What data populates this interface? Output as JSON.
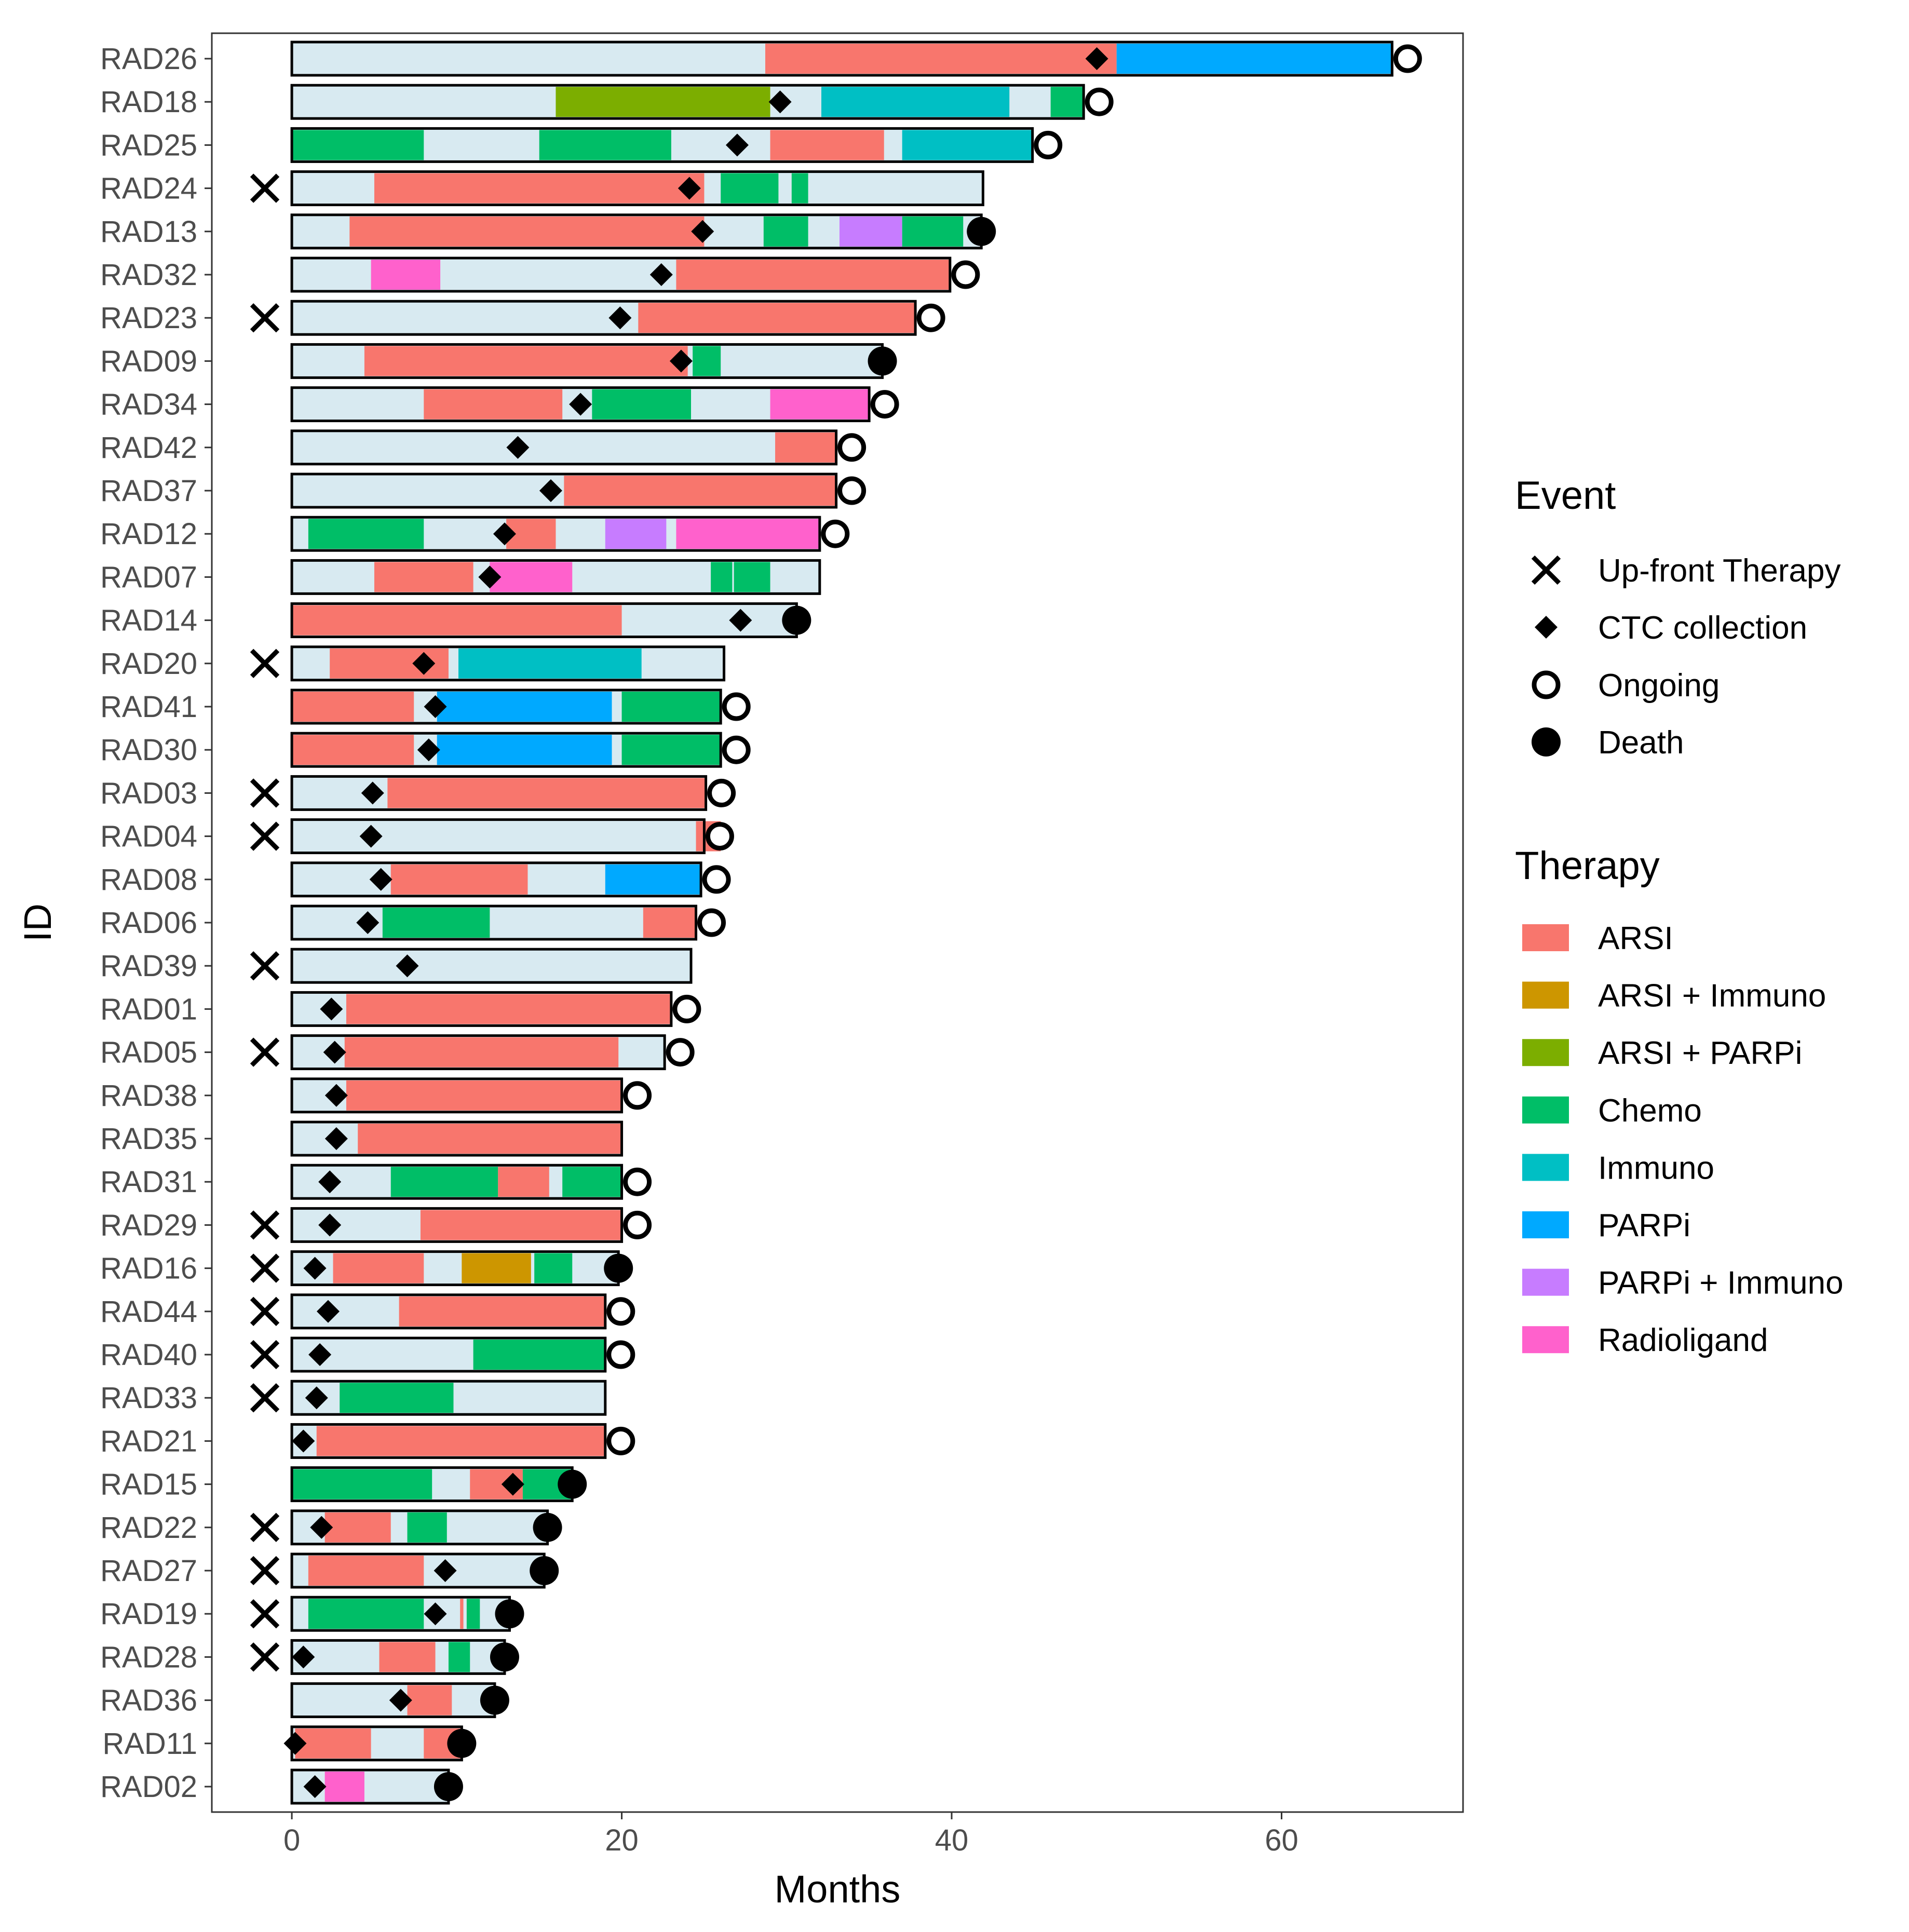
{
  "chart_data": {
    "type": "swimmer",
    "xlabel": "Months",
    "ylabel": "ID",
    "xlim": [
      -4.85,
      71
    ],
    "xticks": [
      0,
      20,
      40,
      60
    ],
    "grid": false,
    "legend_placement": "right",
    "legend": {
      "event_title": "Event",
      "events": [
        {
          "key": "upfront",
          "label": "Up-front Therapy"
        },
        {
          "key": "ctc",
          "label": "CTC collection"
        },
        {
          "key": "ongoing",
          "label": "Ongoing"
        },
        {
          "key": "death",
          "label": "Death"
        }
      ],
      "therapy_title": "Therapy",
      "therapies": [
        {
          "key": "ARSI",
          "label": "ARSI"
        },
        {
          "key": "ARSI_Immuno",
          "label": "ARSI + Immuno"
        },
        {
          "key": "ARSI_PARPi",
          "label": "ARSI + PARPi"
        },
        {
          "key": "Chemo",
          "label": "Chemo"
        },
        {
          "key": "Immuno",
          "label": "Immuno"
        },
        {
          "key": "PARPi",
          "label": "PARPi"
        },
        {
          "key": "PARPi_Immuno",
          "label": "PARPi + Immuno"
        },
        {
          "key": "Radioligand",
          "label": "Radioligand"
        }
      ]
    },
    "colors": {
      "background_bar": "#d8eaf1",
      "ARSI": "#f8766d",
      "ARSI_Immuno": "#cd9600",
      "ARSI_PARPi": "#7cae00",
      "Chemo": "#00be67",
      "Immuno": "#00bfc4",
      "PARPi": "#00a9ff",
      "PARPi_Immuno": "#c77cff",
      "Radioligand": "#ff61cc"
    },
    "patients": [
      {
        "id": "RAD26",
        "end": 66.7,
        "upfront": false,
        "ctc": 48.8,
        "status": "ongoing",
        "segments": [
          [
            "ARSI",
            28.7,
            50
          ],
          [
            "PARPi",
            50,
            66.7
          ]
        ]
      },
      {
        "id": "RAD18",
        "end": 48,
        "upfront": false,
        "ctc": 29.6,
        "status": "ongoing",
        "segments": [
          [
            "ARSI_PARPi",
            16,
            29
          ],
          [
            "Immuno",
            32.1,
            43.5
          ],
          [
            "Chemo",
            46,
            48
          ]
        ]
      },
      {
        "id": "RAD25",
        "end": 44.9,
        "upfront": false,
        "ctc": 27,
        "status": "ongoing",
        "segments": [
          [
            "Chemo",
            0,
            8
          ],
          [
            "Chemo",
            15,
            23
          ],
          [
            "ARSI",
            29,
            35.9
          ],
          [
            "Immuno",
            37,
            44.9
          ]
        ]
      },
      {
        "id": "RAD24",
        "end": 41.9,
        "upfront": true,
        "ctc": 24.1,
        "status": "none",
        "segments": [
          [
            "ARSI",
            5,
            25
          ],
          [
            "Chemo",
            26,
            29.5
          ],
          [
            "Chemo",
            30.3,
            31.3
          ]
        ]
      },
      {
        "id": "RAD13",
        "end": 41.8,
        "upfront": false,
        "ctc": 24.9,
        "status": "death",
        "segments": [
          [
            "ARSI",
            3.5,
            25
          ],
          [
            "Chemo",
            28.6,
            31.3
          ],
          [
            "PARPi_Immuno",
            33.2,
            37
          ],
          [
            "Chemo",
            37,
            40.7
          ]
        ]
      },
      {
        "id": "RAD32",
        "end": 39.9,
        "upfront": false,
        "ctc": 22.4,
        "status": "ongoing",
        "segments": [
          [
            "Radioligand",
            4.8,
            9
          ],
          [
            "ARSI",
            23.3,
            39.9
          ]
        ]
      },
      {
        "id": "RAD23",
        "end": 37.8,
        "upfront": true,
        "ctc": 19.9,
        "status": "ongoing",
        "segments": [
          [
            "ARSI",
            21,
            37.8
          ]
        ]
      },
      {
        "id": "RAD09",
        "end": 35.8,
        "upfront": false,
        "ctc": 23.6,
        "status": "death",
        "segments": [
          [
            "ARSI",
            4.4,
            24
          ],
          [
            "Chemo",
            24.3,
            26
          ]
        ]
      },
      {
        "id": "RAD34",
        "end": 35,
        "upfront": false,
        "ctc": 17.5,
        "status": "ongoing",
        "segments": [
          [
            "ARSI",
            8,
            16.4
          ],
          [
            "Chemo",
            18.2,
            24.2
          ],
          [
            "Radioligand",
            29,
            35
          ]
        ]
      },
      {
        "id": "RAD42",
        "end": 33,
        "upfront": false,
        "ctc": 13.7,
        "status": "ongoing",
        "segments": [
          [
            "ARSI",
            29.3,
            33
          ]
        ]
      },
      {
        "id": "RAD37",
        "end": 33,
        "upfront": false,
        "ctc": 15.7,
        "status": "ongoing",
        "segments": [
          [
            "ARSI",
            16.5,
            33
          ]
        ]
      },
      {
        "id": "RAD12",
        "end": 32,
        "upfront": false,
        "ctc": 12.9,
        "status": "ongoing",
        "segments": [
          [
            "Chemo",
            1,
            8
          ],
          [
            "ARSI",
            13,
            16
          ],
          [
            "PARPi_Immuno",
            19,
            22.7
          ],
          [
            "Radioligand",
            23.3,
            32
          ]
        ]
      },
      {
        "id": "RAD07",
        "end": 32,
        "upfront": false,
        "ctc": 12,
        "status": "none",
        "segments": [
          [
            "ARSI",
            5,
            11
          ],
          [
            "Radioligand",
            12,
            17
          ],
          [
            "Chemo",
            25.4,
            26.7
          ],
          [
            "Chemo",
            26.8,
            29
          ]
        ]
      },
      {
        "id": "RAD14",
        "end": 30.6,
        "upfront": false,
        "ctc": 27.2,
        "status": "death",
        "segments": [
          [
            "ARSI",
            0,
            20
          ]
        ]
      },
      {
        "id": "RAD20",
        "end": 26.2,
        "upfront": true,
        "ctc": 8,
        "status": "none",
        "segments": [
          [
            "ARSI",
            2.3,
            9.5
          ],
          [
            "Immuno",
            10.1,
            21.2
          ]
        ]
      },
      {
        "id": "RAD41",
        "end": 26,
        "upfront": false,
        "ctc": 8.7,
        "status": "ongoing",
        "segments": [
          [
            "ARSI",
            0,
            7.4
          ],
          [
            "PARPi",
            8.8,
            19.4
          ],
          [
            "Chemo",
            20,
            26
          ]
        ]
      },
      {
        "id": "RAD30",
        "end": 26,
        "upfront": false,
        "ctc": 8.3,
        "status": "ongoing",
        "segments": [
          [
            "ARSI",
            0,
            7.4
          ],
          [
            "PARPi",
            8.8,
            19.4
          ],
          [
            "Chemo",
            20,
            26
          ]
        ]
      },
      {
        "id": "RAD03",
        "end": 25.1,
        "upfront": true,
        "ctc": 4.9,
        "status": "ongoing",
        "segments": [
          [
            "ARSI",
            5.8,
            25.1
          ]
        ]
      },
      {
        "id": "RAD04",
        "end": 25,
        "upfront": true,
        "ctc": 4.8,
        "status": "ongoing",
        "segments": [
          [
            "ARSI",
            24.5,
            26
          ]
        ]
      },
      {
        "id": "RAD08",
        "end": 24.8,
        "upfront": false,
        "ctc": 5.4,
        "status": "ongoing",
        "segments": [
          [
            "ARSI",
            6,
            14.3
          ],
          [
            "PARPi",
            19,
            24.8
          ]
        ]
      },
      {
        "id": "RAD06",
        "end": 24.5,
        "upfront": false,
        "ctc": 4.6,
        "status": "ongoing",
        "segments": [
          [
            "Chemo",
            5.5,
            12
          ],
          [
            "ARSI",
            21.3,
            24.5
          ]
        ]
      },
      {
        "id": "RAD39",
        "end": 24.2,
        "upfront": true,
        "ctc": 7,
        "status": "none",
        "segments": []
      },
      {
        "id": "RAD01",
        "end": 23,
        "upfront": false,
        "ctc": 2.4,
        "status": "ongoing",
        "segments": [
          [
            "ARSI",
            3.3,
            23
          ]
        ]
      },
      {
        "id": "RAD05",
        "end": 22.6,
        "upfront": true,
        "ctc": 2.6,
        "status": "ongoing",
        "segments": [
          [
            "ARSI",
            3.2,
            19.8
          ]
        ]
      },
      {
        "id": "RAD38",
        "end": 20,
        "upfront": false,
        "ctc": 2.7,
        "status": "ongoing",
        "segments": [
          [
            "ARSI",
            3.3,
            20
          ]
        ]
      },
      {
        "id": "RAD35",
        "end": 20,
        "upfront": false,
        "ctc": 2.7,
        "status": "none",
        "segments": [
          [
            "ARSI",
            4,
            20
          ]
        ]
      },
      {
        "id": "RAD31",
        "end": 20,
        "upfront": false,
        "ctc": 2.3,
        "status": "ongoing",
        "segments": [
          [
            "Chemo",
            6,
            12.5
          ],
          [
            "ARSI",
            12.5,
            15.6
          ],
          [
            "Chemo",
            16.4,
            20
          ]
        ]
      },
      {
        "id": "RAD29",
        "end": 20,
        "upfront": true,
        "ctc": 2.3,
        "status": "ongoing",
        "segments": [
          [
            "ARSI",
            7.8,
            20
          ]
        ]
      },
      {
        "id": "RAD16",
        "end": 19.8,
        "upfront": true,
        "ctc": 1.4,
        "status": "death",
        "segments": [
          [
            "ARSI",
            2.5,
            8
          ],
          [
            "ARSI_Immuno",
            10.3,
            14.5
          ],
          [
            "Chemo",
            14.7,
            17
          ]
        ]
      },
      {
        "id": "RAD44",
        "end": 19,
        "upfront": true,
        "ctc": 2.2,
        "status": "ongoing",
        "segments": [
          [
            "ARSI",
            6.5,
            19
          ]
        ]
      },
      {
        "id": "RAD40",
        "end": 19,
        "upfront": true,
        "ctc": 1.7,
        "status": "ongoing",
        "segments": [
          [
            "Chemo",
            11,
            19
          ]
        ]
      },
      {
        "id": "RAD33",
        "end": 19,
        "upfront": true,
        "ctc": 1.5,
        "status": "none",
        "segments": [
          [
            "Chemo",
            2.9,
            9.8
          ]
        ]
      },
      {
        "id": "RAD21",
        "end": 19,
        "upfront": false,
        "ctc": 0.7,
        "status": "ongoing",
        "segments": [
          [
            "ARSI",
            1.5,
            19
          ]
        ]
      },
      {
        "id": "RAD15",
        "end": 17,
        "upfront": false,
        "ctc": 13.4,
        "status": "death",
        "segments": [
          [
            "Chemo",
            0,
            8.5
          ],
          [
            "ARSI",
            10.8,
            14
          ],
          [
            "Chemo",
            14,
            17
          ]
        ]
      },
      {
        "id": "RAD22",
        "end": 15.5,
        "upfront": true,
        "ctc": 1.8,
        "status": "death",
        "segments": [
          [
            "ARSI",
            2,
            6
          ],
          [
            "Chemo",
            7,
            9.4
          ]
        ]
      },
      {
        "id": "RAD27",
        "end": 15.3,
        "upfront": true,
        "ctc": 9.3,
        "status": "death",
        "segments": [
          [
            "ARSI",
            1,
            8
          ]
        ]
      },
      {
        "id": "RAD19",
        "end": 13.2,
        "upfront": true,
        "ctc": 8.7,
        "status": "death",
        "segments": [
          [
            "Chemo",
            1,
            8
          ],
          [
            "ARSI",
            10.2,
            10.4
          ],
          [
            "Chemo",
            10.6,
            11.4
          ]
        ]
      },
      {
        "id": "RAD28",
        "end": 12.9,
        "upfront": true,
        "ctc": 0.7,
        "status": "death",
        "segments": [
          [
            "ARSI",
            5.3,
            8.7
          ],
          [
            "Chemo",
            9.5,
            10.8
          ]
        ]
      },
      {
        "id": "RAD36",
        "end": 12.3,
        "upfront": false,
        "ctc": 6.6,
        "status": "death",
        "segments": [
          [
            "ARSI",
            7,
            9.7
          ]
        ]
      },
      {
        "id": "RAD11",
        "end": 10.3,
        "upfront": false,
        "ctc": 0.2,
        "status": "death",
        "segments": [
          [
            "ARSI",
            0.2,
            4.8
          ],
          [
            "ARSI",
            8,
            10.3
          ]
        ]
      },
      {
        "id": "RAD02",
        "end": 9.5,
        "upfront": false,
        "ctc": 1.4,
        "status": "death",
        "segments": [
          [
            "Radioligand",
            2,
            4.4
          ]
        ]
      }
    ]
  }
}
